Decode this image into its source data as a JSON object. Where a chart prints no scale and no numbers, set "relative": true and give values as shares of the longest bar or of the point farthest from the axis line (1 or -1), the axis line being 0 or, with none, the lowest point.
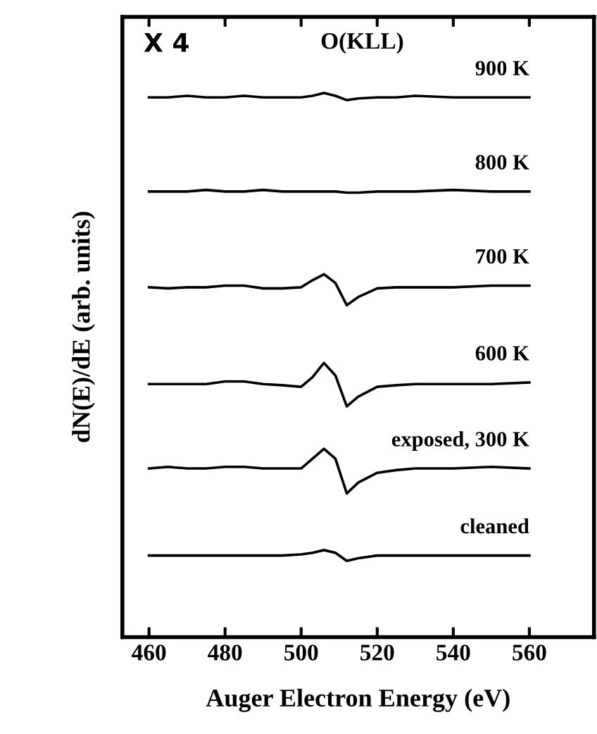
{
  "chart_data": {
    "type": "line",
    "relative": true,
    "xlabel": "Auger Electron Energy (eV)",
    "ylabel": "dN(E)/dE (arb. units)",
    "annotations": [
      "X 4",
      "O(KLL)"
    ],
    "x": [
      460,
      465,
      470,
      475,
      480,
      485,
      490,
      495,
      500,
      503,
      506,
      509,
      512,
      515,
      520,
      525,
      530,
      540,
      550,
      560
    ],
    "xlim": [
      453,
      577
    ],
    "xticks": [
      460,
      480,
      500,
      520,
      540,
      560
    ],
    "tick_labels": "x",
    "grid": false,
    "legend": false,
    "marker": "none",
    "line_style": "solid",
    "series": [
      {
        "name": "900 K",
        "color": "#000000",
        "values": [
          0.992,
          0.992,
          0.995,
          0.992,
          0.992,
          0.995,
          0.992,
          0.992,
          0.992,
          0.995,
          1,
          0.995,
          0.987,
          0.99,
          0.992,
          0.992,
          0.995,
          0.992,
          0.992,
          0.992
        ]
      },
      {
        "name": "800 K",
        "color": "#000000",
        "values": [
          0.819,
          0.819,
          0.819,
          0.822,
          0.819,
          0.819,
          0.822,
          0.819,
          0.819,
          0.819,
          0.819,
          0.819,
          0.817,
          0.817,
          0.819,
          0.819,
          0.819,
          0.822,
          0.819,
          0.819
        ]
      },
      {
        "name": "700 K",
        "color": "#000000",
        "values": [
          0.643,
          0.641,
          0.643,
          0.643,
          0.646,
          0.646,
          0.641,
          0.641,
          0.643,
          0.656,
          0.667,
          0.651,
          0.61,
          0.625,
          0.641,
          0.643,
          0.643,
          0.643,
          0.646,
          0.646
        ]
      },
      {
        "name": "600 K",
        "color": "#000000",
        "values": [
          0.465,
          0.465,
          0.465,
          0.465,
          0.47,
          0.47,
          0.465,
          0.463,
          0.46,
          0.478,
          0.504,
          0.481,
          0.424,
          0.442,
          0.46,
          0.463,
          0.465,
          0.465,
          0.465,
          0.468
        ]
      },
      {
        "name": "exposed, 300 K",
        "color": "#000000",
        "values": [
          0.31,
          0.313,
          0.31,
          0.31,
          0.313,
          0.313,
          0.31,
          0.31,
          0.31,
          0.328,
          0.346,
          0.328,
          0.264,
          0.284,
          0.302,
          0.307,
          0.31,
          0.31,
          0.313,
          0.31
        ]
      },
      {
        "name": "cleaned",
        "color": "#000000",
        "values": [
          0.15,
          0.15,
          0.15,
          0.15,
          0.15,
          0.15,
          0.15,
          0.15,
          0.152,
          0.155,
          0.16,
          0.155,
          0.14,
          0.145,
          0.15,
          0.15,
          0.15,
          0.15,
          0.15,
          0.15
        ]
      }
    ]
  }
}
